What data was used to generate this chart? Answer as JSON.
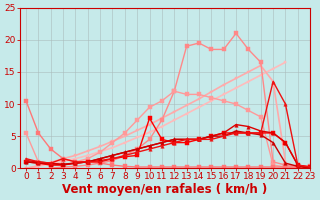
{
  "xlabel": "Vent moyen/en rafales ( km/h )",
  "ylabel": "",
  "xlim": [
    -0.5,
    23
  ],
  "ylim": [
    0,
    25
  ],
  "xticks": [
    0,
    1,
    2,
    3,
    4,
    5,
    6,
    7,
    8,
    9,
    10,
    11,
    12,
    13,
    14,
    15,
    16,
    17,
    18,
    19,
    20,
    21,
    22,
    23
  ],
  "yticks": [
    0,
    5,
    10,
    15,
    20,
    25
  ],
  "bg_color": "#c6eaea",
  "grid_color": "#aabcbc",
  "lines": [
    {
      "x": [
        0,
        1,
        2,
        3,
        4,
        5,
        6,
        7,
        8,
        9,
        10,
        11,
        12,
        13,
        14,
        15,
        16,
        17,
        18,
        19,
        20,
        21
      ],
      "y": [
        0.0,
        0.3,
        0.7,
        1.1,
        1.5,
        2.0,
        2.6,
        3.2,
        4.0,
        4.8,
        5.6,
        6.5,
        7.5,
        8.5,
        9.5,
        10.5,
        11.5,
        12.5,
        13.5,
        14.5,
        15.5,
        16.5
      ],
      "color": "#ffbbbb",
      "lw": 1.2,
      "marker": "s",
      "ms": 2.0
    },
    {
      "x": [
        0,
        1,
        2,
        3,
        4,
        5,
        6,
        7,
        8,
        9,
        10,
        11,
        12,
        13,
        14,
        15,
        16,
        17,
        18,
        19,
        20,
        21
      ],
      "y": [
        0.0,
        0.4,
        0.9,
        1.5,
        2.0,
        2.7,
        3.4,
        4.2,
        5.0,
        5.9,
        6.8,
        7.8,
        8.8,
        9.8,
        10.8,
        11.9,
        13.0,
        14.0,
        15.0,
        16.0,
        13.5,
        1.0
      ],
      "color": "#ffaaaa",
      "lw": 1.2,
      "marker": "s",
      "ms": 2.0
    },
    {
      "x": [
        2,
        3,
        4,
        5,
        6,
        7,
        8,
        9,
        10,
        11,
        12,
        13,
        14,
        15,
        16,
        17,
        18,
        19,
        20,
        21,
        22,
        23
      ],
      "y": [
        0.0,
        0.2,
        0.3,
        0.5,
        0.8,
        1.2,
        2.0,
        3.0,
        4.5,
        7.5,
        12.0,
        19.0,
        19.5,
        18.5,
        18.5,
        21.0,
        18.5,
        16.5,
        1.0,
        0.5,
        0.3,
        0.3
      ],
      "color": "#ff8888",
      "lw": 1.0,
      "marker": "s",
      "ms": 2.5
    },
    {
      "x": [
        0,
        1,
        2,
        3,
        4,
        5,
        6,
        7,
        8,
        9,
        10,
        11,
        12,
        13,
        14,
        15,
        16,
        17,
        18,
        19,
        20,
        21,
        22,
        23
      ],
      "y": [
        5.5,
        1.0,
        0.5,
        0.5,
        1.0,
        1.5,
        2.5,
        4.0,
        5.5,
        7.5,
        9.5,
        10.5,
        12.0,
        11.5,
        11.5,
        11.0,
        10.5,
        10.0,
        9.0,
        8.0,
        0.5,
        0.2,
        0.1,
        0.0
      ],
      "color": "#ff9999",
      "lw": 1.0,
      "marker": "s",
      "ms": 2.5
    },
    {
      "x": [
        0,
        1,
        2,
        3,
        4,
        5,
        6,
        7,
        8,
        9,
        10,
        11,
        12,
        13,
        14,
        15,
        16,
        17,
        18,
        19,
        20,
        21,
        22,
        23
      ],
      "y": [
        10.5,
        5.5,
        3.0,
        1.5,
        1.0,
        1.0,
        0.8,
        0.5,
        0.3,
        0.2,
        0.2,
        0.2,
        0.2,
        0.2,
        0.2,
        0.2,
        0.2,
        0.2,
        0.2,
        0.2,
        0.2,
        0.2,
        0.2,
        0.0
      ],
      "color": "#ff7777",
      "lw": 1.0,
      "marker": "s",
      "ms": 2.5
    },
    {
      "x": [
        0,
        1,
        2,
        3,
        4,
        5,
        6,
        7,
        8,
        9,
        10,
        11,
        12,
        13,
        14,
        15,
        16,
        17,
        18,
        19,
        20,
        21,
        22,
        23
      ],
      "y": [
        1.0,
        0.8,
        0.5,
        0.5,
        0.8,
        1.0,
        1.2,
        1.5,
        1.8,
        2.0,
        7.8,
        4.5,
        4.0,
        4.0,
        4.5,
        5.0,
        5.5,
        5.5,
        5.5,
        5.5,
        5.5,
        4.0,
        0.5,
        0.2
      ],
      "color": "#ff0000",
      "lw": 1.0,
      "marker": "s",
      "ms": 2.5
    },
    {
      "x": [
        0,
        1,
        2,
        3,
        4,
        5,
        6,
        7,
        8,
        9,
        10,
        11,
        12,
        13,
        14,
        15,
        16,
        17,
        18,
        19,
        20,
        21,
        22,
        23
      ],
      "y": [
        1.2,
        1.0,
        0.8,
        0.6,
        0.8,
        1.0,
        1.5,
        2.0,
        2.5,
        3.0,
        3.5,
        4.0,
        4.5,
        4.5,
        4.5,
        5.0,
        5.5,
        6.8,
        6.5,
        5.8,
        5.5,
        4.0,
        0.5,
        0.0
      ],
      "color": "#dd0000",
      "lw": 1.0,
      "marker": "^",
      "ms": 2.5
    },
    {
      "x": [
        0,
        1,
        2,
        3,
        4,
        5,
        6,
        7,
        8,
        9,
        10,
        11,
        12,
        13,
        14,
        15,
        16,
        17,
        18,
        19,
        20,
        21,
        22,
        23
      ],
      "y": [
        1.0,
        0.8,
        0.7,
        0.6,
        0.8,
        1.0,
        1.5,
        2.0,
        2.5,
        3.0,
        3.5,
        4.0,
        4.5,
        4.5,
        4.5,
        5.0,
        5.0,
        5.8,
        5.5,
        5.2,
        4.0,
        0.8,
        0.3,
        0.0
      ],
      "color": "#cc0000",
      "lw": 1.0,
      "marker": "^",
      "ms": 2.5
    },
    {
      "x": [
        0,
        1,
        2,
        3,
        4,
        5,
        6,
        7,
        8,
        9,
        10,
        11,
        12,
        13,
        14,
        15,
        16,
        17,
        18,
        19,
        20,
        21,
        22,
        23
      ],
      "y": [
        1.5,
        1.0,
        0.8,
        1.5,
        1.0,
        1.0,
        1.0,
        1.5,
        2.0,
        2.5,
        3.0,
        3.5,
        4.0,
        4.5,
        4.5,
        4.5,
        5.0,
        5.5,
        5.5,
        5.5,
        13.5,
        10.0,
        0.5,
        0.2
      ],
      "color": "#ee1111",
      "lw": 1.0,
      "marker": "^",
      "ms": 2.5
    }
  ],
  "tick_color": "#cc0000",
  "tick_fontsize": 6.5,
  "xlabel_fontsize": 8.5,
  "xlabel_color": "#cc0000",
  "xlabel_fontweight": "bold"
}
